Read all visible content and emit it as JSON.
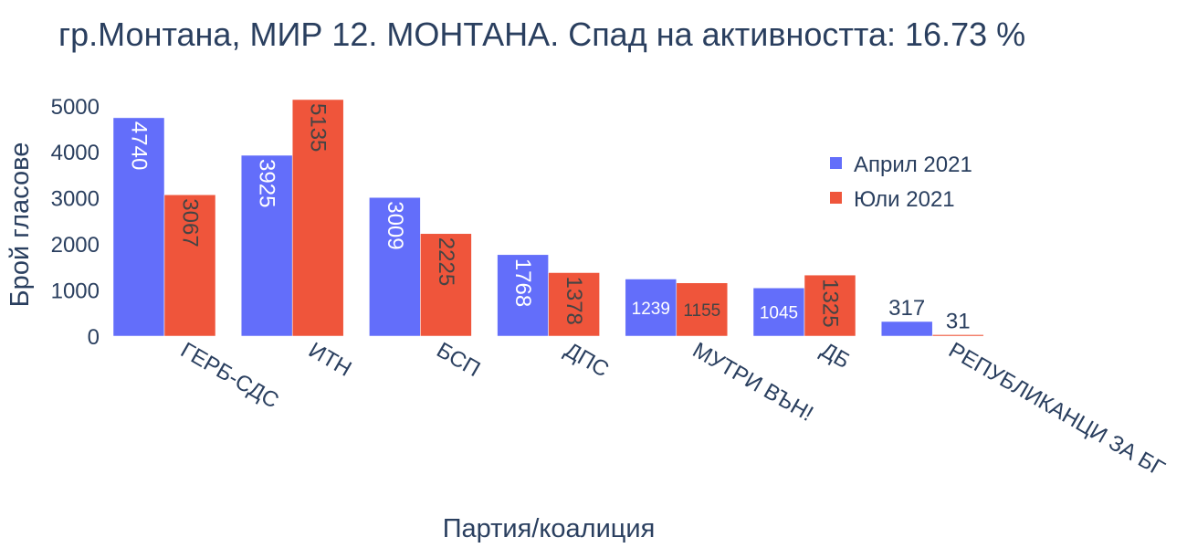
{
  "chart_data": {
    "type": "bar",
    "title": "гр.Монтана, МИР 12. МОНТАНА. Спад на активността: 16.73 %",
    "xlabel": "Партия/коалиция",
    "ylabel": "Брой гласове",
    "categories": [
      "ГЕРБ-СДС",
      "ИТН",
      "БСП",
      "ДПС",
      "МУТРИ ВЪН!",
      "ДБ",
      "РЕПУБЛИКАНЦИ ЗА БГ"
    ],
    "series": [
      {
        "name": "Април 2021",
        "color": "#636efa",
        "values": [
          4740,
          3925,
          3009,
          1768,
          1239,
          1045,
          317
        ]
      },
      {
        "name": "Юли 2021",
        "color": "#ef553b",
        "values": [
          3067,
          5135,
          2225,
          1378,
          1155,
          1325,
          31
        ]
      }
    ],
    "ylim": [
      0,
      5135
    ],
    "yticks": [
      0,
      1000,
      2000,
      3000,
      4000,
      5000
    ],
    "grid": false,
    "legend_position": "right"
  }
}
